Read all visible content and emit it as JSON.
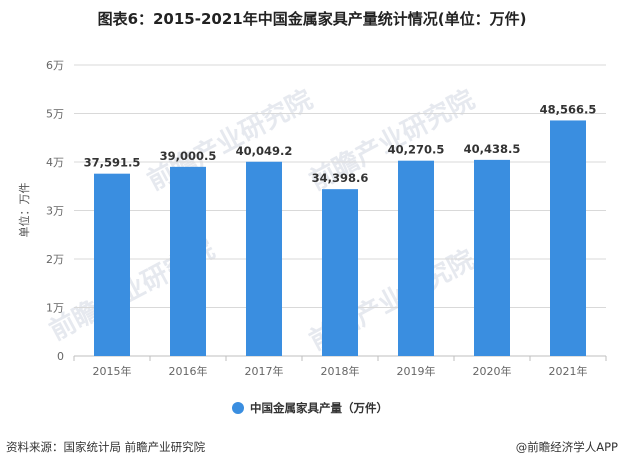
{
  "title": "图表6：2015-2021年中国金属家具产量统计情况(单位：万件)",
  "watermark": "前瞻产业研究院",
  "footer": {
    "source": "资料来源：国家统计局 前瞻产业研究院",
    "brand": "@前瞻经济学人APP",
    "brand_icon": "copyright-icon"
  },
  "colors": {
    "bar": "#3a8ee0",
    "grid": "#d9d9d9",
    "axis": "#666666"
  },
  "chart_data": {
    "type": "bar",
    "categories": [
      "2015年",
      "2016年",
      "2017年",
      "2018年",
      "2019年",
      "2020年",
      "2021年"
    ],
    "series": [
      {
        "name": "中国金属家具产量（万件）",
        "values": [
          37591.5,
          39000.5,
          40049.2,
          34398.6,
          40270.5,
          40438.5,
          48566.5
        ]
      }
    ],
    "data_labels": [
      "37,591.5",
      "39,000.5",
      "40,049.2",
      "34,398.6",
      "40,270.5",
      "40,438.5",
      "48,566.5"
    ],
    "ylabel": "单位：万件",
    "ylim": [
      0,
      60000
    ],
    "yticks": [
      0,
      10000,
      20000,
      30000,
      40000,
      50000,
      60000
    ],
    "ytick_labels": [
      "0",
      "1万",
      "2万",
      "3万",
      "4万",
      "5万",
      "6万"
    ],
    "grid": true,
    "legend": "bottom"
  }
}
